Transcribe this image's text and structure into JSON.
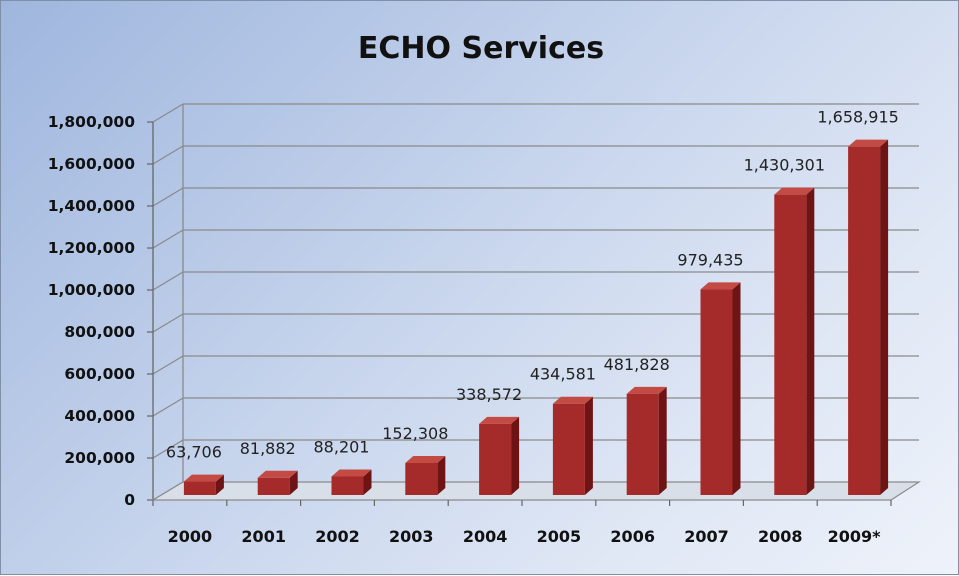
{
  "chart_data": {
    "type": "bar",
    "title": "ECHO Services",
    "categories": [
      "2000",
      "2001",
      "2002",
      "2003",
      "2004",
      "2005",
      "2006",
      "2007",
      "2008",
      "2009*"
    ],
    "values": [
      63706,
      81882,
      88201,
      152308,
      338572,
      434581,
      481828,
      979435,
      1430301,
      1658915
    ],
    "value_labels": [
      "63,706",
      "81,882",
      "88,201",
      "152,308",
      "338,572",
      "434,581",
      "481,828",
      "979,435",
      "1,430,301",
      "1,658,915"
    ],
    "y_ticks": [
      "0",
      "200,000",
      "400,000",
      "600,000",
      "800,000",
      "1,000,000",
      "1,200,000",
      "1,400,000",
      "1,600,000",
      "1,800,000"
    ],
    "ylim": [
      0,
      1800000
    ],
    "grid": true,
    "legend": "none",
    "bar_color": "#a52a2a"
  }
}
